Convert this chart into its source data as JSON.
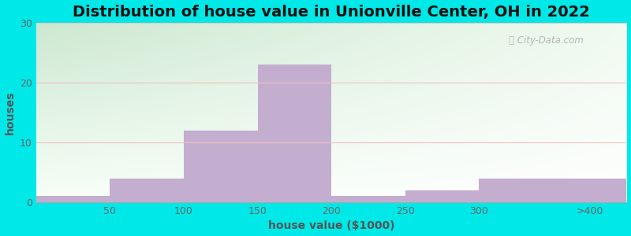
{
  "title": "Distribution of house value in Unionville Center, OH in 2022",
  "xlabel": "house value ($1000)",
  "ylabel": "houses",
  "categories": [
    "<50",
    "50-100",
    "100-150",
    "150-200",
    "200-250",
    "250-300",
    "300-400",
    ">400"
  ],
  "tick_labels": [
    "50",
    "100",
    "150",
    "200",
    "250",
    "300",
    ">400"
  ],
  "values": [
    1,
    4,
    12,
    23,
    1,
    2,
    4,
    4
  ],
  "ylim": [
    0,
    30
  ],
  "yticks": [
    0,
    10,
    20,
    30
  ],
  "bar_color": "#c4aed0",
  "bg_outer": "#00e8e8",
  "title_fontsize": 14,
  "label_fontsize": 10,
  "watermark": "City-Data.com"
}
